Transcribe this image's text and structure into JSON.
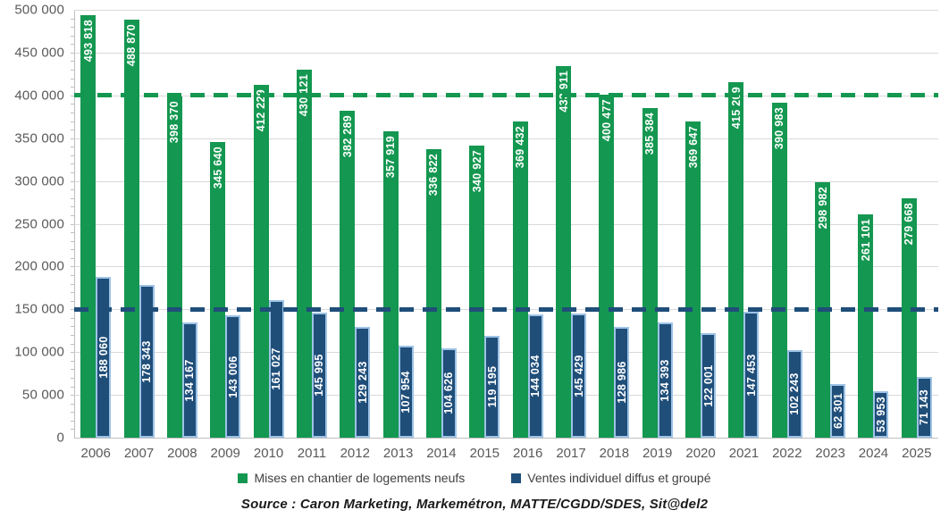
{
  "chart_data": {
    "type": "bar",
    "title": "",
    "categories": [
      "2006",
      "2007",
      "2008",
      "2009",
      "2010",
      "2011",
      "2012",
      "2013",
      "2014",
      "2015",
      "2016",
      "2017",
      "2018",
      "2019",
      "2020",
      "2021",
      "2022",
      "2023",
      "2024",
      "2025"
    ],
    "series": [
      {
        "name": "Mises en chantier de logements neufs",
        "color": "#149750",
        "label_position": "inside-end",
        "values": [
          493818,
          488870,
          398370,
          345640,
          412229,
          430121,
          382289,
          357919,
          336822,
          340927,
          369432,
          433911,
          400477,
          385384,
          369647,
          415209,
          390983,
          298982,
          261101,
          279668
        ],
        "labels": [
          "493 818",
          "488 870",
          "398 370",
          "345 640",
          "412 229",
          "430 121",
          "382 289",
          "357 919",
          "336 822",
          "340 927",
          "369 432",
          "433 911",
          "400 477",
          "385 384",
          "369 647",
          "415 209",
          "390 983",
          "298 982",
          "261 101",
          "279 668"
        ]
      },
      {
        "name": "Ventes individuel diffus et groupé",
        "color": "#1F4E79",
        "border_color": "#9DC3E6",
        "label_position": "inside-center",
        "values": [
          188060,
          178343,
          134167,
          143006,
          161027,
          145995,
          129243,
          107954,
          104626,
          119195,
          144034,
          145429,
          128986,
          134393,
          122001,
          147453,
          102243,
          62301,
          53953,
          71143
        ],
        "labels": [
          "188 060",
          "178 343",
          "134 167",
          "143 006",
          "161 027",
          "145 995",
          "129 243",
          "107 954",
          "104 626",
          "119 195",
          "144 034",
          "145 429",
          "128 986",
          "134 393",
          "122 001",
          "147 453",
          "102 243",
          "62 301",
          "53 953",
          "71 143"
        ]
      }
    ],
    "ylim": [
      0,
      500000
    ],
    "ytick_interval": 50000,
    "ytick_labels": [
      "0",
      "50 000",
      "100 000",
      "150 000",
      "200 000",
      "250 000",
      "300 000",
      "350 000",
      "400 000",
      "450 000",
      "500 000"
    ],
    "minor_tick_interval": 10000,
    "grid": true,
    "legend_position": "bottom",
    "reference_lines": [
      {
        "value": 400000,
        "color": "#149750",
        "style": "dashed"
      },
      {
        "value": 150000,
        "color": "#1F4E79",
        "style": "dashed"
      }
    ]
  },
  "legend": {
    "items": [
      {
        "label": "Mises en chantier de logements neufs",
        "color": "#149750"
      },
      {
        "label": "Ventes individuel diffus et groupé",
        "color": "#1F4E79"
      }
    ]
  },
  "source_note": "Source : Caron Marketing, Markemétron, MATTE/CGDD/SDES, Sit@del2",
  "colors": {
    "green": "#149750",
    "blue": "#1F4E79",
    "blue_border": "#9DC3E6",
    "gridline": "#D9D9D9",
    "axis": "#BFBFBF",
    "tick_label": "#595959",
    "legend_text": "#404040",
    "background": "#FFFFFF"
  }
}
